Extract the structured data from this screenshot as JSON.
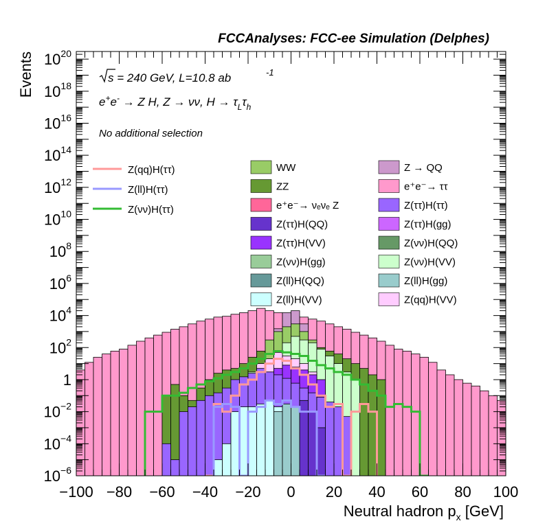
{
  "chart_data": {
    "type": "histogram-stacked",
    "header": "FCCAnalyses: FCC-ee Simulation (Delphes)",
    "annotations": {
      "energy": "√s = 240 GeV, L=10.8 ab⁻¹",
      "process": "e⁺e⁻ → Z H, Z → νν, H → τ_Lτ_h",
      "selection": "No additional selection"
    },
    "xlabel": "Neutral hadron p_x [GeV]",
    "ylabel": "Events",
    "xlim": [
      -100,
      100
    ],
    "ylim": [
      1e-06,
      3e+20
    ],
    "yscale": "log",
    "xticks": [
      "−100",
      "−80",
      "−60",
      "−40",
      "−20",
      "0",
      "20",
      "40",
      "60",
      "80",
      "100"
    ],
    "yticks": [
      {
        "base": "10",
        "exp": "−6",
        "v": 1e-06
      },
      {
        "base": "10",
        "exp": "−4",
        "v": 0.0001
      },
      {
        "base": "10",
        "exp": "−2",
        "v": 0.01
      },
      {
        "base": "1",
        "exp": "",
        "v": 1
      },
      {
        "base": "10",
        "exp": "2",
        "v": 100.0
      },
      {
        "base": "10",
        "exp": "4",
        "v": 10000.0
      },
      {
        "base": "10",
        "exp": "6",
        "v": 1000000.0
      },
      {
        "base": "10",
        "exp": "8",
        "v": 100000000.0
      },
      {
        "base": "10",
        "exp": "10",
        "v": 10000000000.0
      },
      {
        "base": "10",
        "exp": "12",
        "v": 1000000000000.0
      },
      {
        "base": "10",
        "exp": "14",
        "v": 100000000000000.0
      },
      {
        "base": "10",
        "exp": "16",
        "v": 1e+16
      },
      {
        "base": "10",
        "exp": "18",
        "v": 1e+18
      },
      {
        "base": "10",
        "exp": "20",
        "v": 1e+20
      }
    ],
    "bin_width": 4,
    "stack_tops": [
      {
        "name": "e⁺e⁻→ ττ",
        "color": "#ff99cc",
        "x0": -100,
        "values": [
          4,
          12,
          25,
          40,
          60,
          80,
          140,
          250,
          400,
          600,
          900,
          1400,
          2000,
          3000,
          4500,
          6000,
          8000,
          9000,
          12000,
          15000,
          20000,
          28000,
          20000,
          15000,
          12000,
          9000,
          8000,
          6000,
          4500,
          3000,
          2000,
          1400,
          900,
          600,
          400,
          250,
          140,
          80,
          60,
          40,
          25,
          12,
          4,
          2,
          1,
          0.6,
          0.4,
          0.2,
          0.1,
          0.05
        ]
      },
      {
        "name": "Z → QQ",
        "color": "#cc99cc",
        "x0": -8,
        "values": [
          1500,
          15000,
          20000,
          3000
        ]
      },
      {
        "name": "ZZ",
        "color": "#669933",
        "x0": -60,
        "values": [
          0.1,
          0.5,
          0.1,
          0.05,
          0.3,
          1,
          2.5,
          4,
          5,
          10,
          25,
          60,
          100,
          200,
          700,
          200,
          400,
          180,
          100,
          60,
          40,
          20,
          10,
          5,
          2,
          1
        ]
      },
      {
        "name": "WW",
        "color": "#99cc66",
        "x0": -12,
        "values": [
          300,
          1000,
          2000,
          3000,
          1000,
          300
        ]
      },
      {
        "name": "Z(νν)H(VV)",
        "color": "#ccffcc",
        "x0": -28,
        "values": [
          0.3,
          1,
          3,
          8,
          15,
          40,
          200,
          500,
          300,
          200,
          80,
          30,
          10,
          3,
          1
        ]
      },
      {
        "name": "Z(qq)H(VV)",
        "color": "#ffccff",
        "x0": -20,
        "values": [
          2,
          10,
          20,
          50,
          30,
          20,
          10,
          3
        ]
      },
      {
        "name": "Z(ττ)H(VV)",
        "color": "#9933ff",
        "x0": -16,
        "values": [
          2,
          3,
          5,
          8,
          6,
          4,
          2,
          1
        ]
      },
      {
        "name": "Z(ττ)H(ττ)",
        "color": "#9966ff",
        "x0": -60,
        "values": [
          0.0001,
          1e-05,
          0.01,
          0.02,
          0.05,
          0.1,
          0.15,
          0.3,
          1,
          1.5,
          2.5,
          5,
          3,
          2,
          1.2,
          0.6,
          0.3,
          0.15,
          0.08,
          0.04,
          0.02,
          0.005
        ]
      },
      {
        "name": "Z(ττ)H(QQ)",
        "color": "#6633cc",
        "x0": -12,
        "values": [
          1e-05,
          5e-05,
          0.001,
          0.01,
          0.05,
          0.01,
          0.001
        ]
      },
      {
        "name": "Z(ll)H(VV)",
        "color": "#ccffff",
        "x0": -36,
        "values": [
          1e-05,
          0.0001,
          0.01,
          0.02,
          0.02,
          0.03,
          0.05,
          0.02,
          0.01
        ]
      },
      {
        "name": "Z(ll)H(gg)",
        "color": "#99cccc",
        "x0": -8,
        "values": [
          0.01,
          0.03,
          0.02
        ]
      }
    ],
    "lines": [
      {
        "name": "Z(qq)H(ττ)",
        "color": "#ff9999",
        "x0": -40,
        "values": [
          1e-06,
          0.03,
          0.01,
          0.1,
          0.5,
          1,
          3,
          10,
          20,
          15,
          5,
          2,
          0.5,
          0.1,
          0.02,
          0.03,
          1e-06,
          0.01,
          0.03,
          0.01
        ]
      },
      {
        "name": "Z(ll)H(ττ)",
        "color": "#9999ff",
        "x0": -36,
        "values": [
          0.02,
          0.03,
          0.02,
          1e-06,
          0.01,
          0.02,
          0.05,
          0.03,
          0.05,
          0.02,
          0.01,
          0.01,
          1e-06
        ]
      },
      {
        "name": "Z(νν)H(ττ)",
        "color": "#33bb33",
        "x0": -68,
        "values": [
          0.01,
          0.01,
          0.1,
          0.1,
          0.15,
          0.3,
          0.5,
          0.8,
          1.2,
          2,
          3,
          5,
          10,
          20,
          40,
          60,
          50,
          40,
          30,
          15,
          8,
          5,
          3,
          2,
          1,
          0.5,
          0.2,
          0.1,
          0.02,
          0.03,
          0.02,
          0.01,
          1e-06
        ]
      }
    ],
    "legend_lines": [
      {
        "label": "Z(qq)H(ττ)",
        "color": "#ff9999"
      },
      {
        "label": "Z(ll)H(ττ)",
        "color": "#9999ff"
      },
      {
        "label": "Z(νν)H(ττ)",
        "color": "#33bb33"
      }
    ],
    "legend_fills": [
      {
        "label": "WW",
        "color": "#99cc66"
      },
      {
        "label": "Z → QQ",
        "color": "#cc99cc"
      },
      {
        "label": "ZZ",
        "color": "#669933"
      },
      {
        "label": "e⁺e⁻→ ττ",
        "color": "#ff99cc"
      },
      {
        "label": "e⁺e⁻→ νₑνₑ Z",
        "color": "#ff6699"
      },
      {
        "label": "Z(ττ)H(ττ)",
        "color": "#9966ff"
      },
      {
        "label": "Z(ττ)H(QQ)",
        "color": "#6633cc"
      },
      {
        "label": "Z(ττ)H(gg)",
        "color": "#cc66ff"
      },
      {
        "label": "Z(ττ)H(VV)",
        "color": "#9933ff"
      },
      {
        "label": "Z(νν)H(QQ)",
        "color": "#669966"
      },
      {
        "label": "Z(νν)H(gg)",
        "color": "#99cc99"
      },
      {
        "label": "Z(νν)H(VV)",
        "color": "#ccffcc"
      },
      {
        "label": "Z(ll)H(QQ)",
        "color": "#669999"
      },
      {
        "label": "Z(ll)H(gg)",
        "color": "#99cccc"
      },
      {
        "label": "Z(ll)H(VV)",
        "color": "#ccffff"
      },
      {
        "label": "Z(qq)H(VV)",
        "color": "#ffccff"
      }
    ]
  }
}
